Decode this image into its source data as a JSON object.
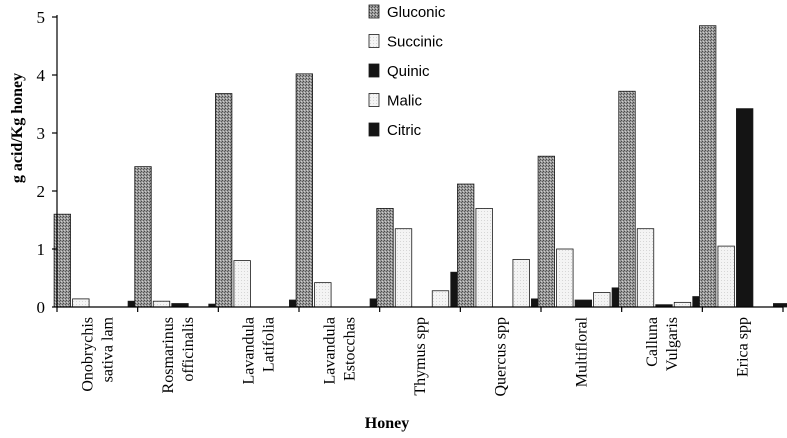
{
  "chart_data": {
    "type": "bar",
    "title": "",
    "xlabel": "Honey",
    "ylabel": "g acid/Kg honey",
    "ylim": [
      0,
      5
    ],
    "yticks": [
      "0",
      "1",
      "2",
      "3",
      "4",
      "5"
    ],
    "categories": [
      [
        "Onobrychis",
        "sativa lam"
      ],
      [
        "Rosmarinus",
        "officinalis"
      ],
      [
        "Lavandula",
        "Latifolia"
      ],
      [
        "Lavandula",
        "Estocchas"
      ],
      [
        "Thymus spp"
      ],
      [
        "Quercus spp"
      ],
      [
        "Multifloral"
      ],
      [
        "Calluna",
        "Vulgaris"
      ],
      [
        "Erica spp"
      ]
    ],
    "series": [
      {
        "name": "Gluconic",
        "color": "#8a8a8a",
        "pattern": "dots",
        "values": [
          1.6,
          2.42,
          3.68,
          4.02,
          1.7,
          2.12,
          2.6,
          3.72,
          4.85
        ]
      },
      {
        "name": "Succinic",
        "color": "#f2f2f2",
        "pattern": "light",
        "values": [
          0.14,
          0.1,
          0.8,
          0.42,
          1.35,
          1.7,
          1.0,
          1.35,
          1.05
        ]
      },
      {
        "name": "Quinic",
        "color": "#141414",
        "pattern": "solid",
        "values": [
          0.0,
          0.06,
          0.0,
          0.0,
          0.0,
          0.0,
          0.12,
          0.04,
          3.42
        ]
      },
      {
        "name": "Malic",
        "color": "#f2f2f2",
        "pattern": "light",
        "values": [
          0.0,
          0.0,
          0.0,
          0.0,
          0.28,
          0.82,
          0.25,
          0.08,
          0.0
        ]
      },
      {
        "name": "Citric",
        "color": "#141414",
        "pattern": "solid",
        "values": [
          0.1,
          0.05,
          0.12,
          0.14,
          0.6,
          0.14,
          0.33,
          0.18,
          0.06
        ]
      }
    ],
    "legend_position": "top-center",
    "grid": false
  }
}
